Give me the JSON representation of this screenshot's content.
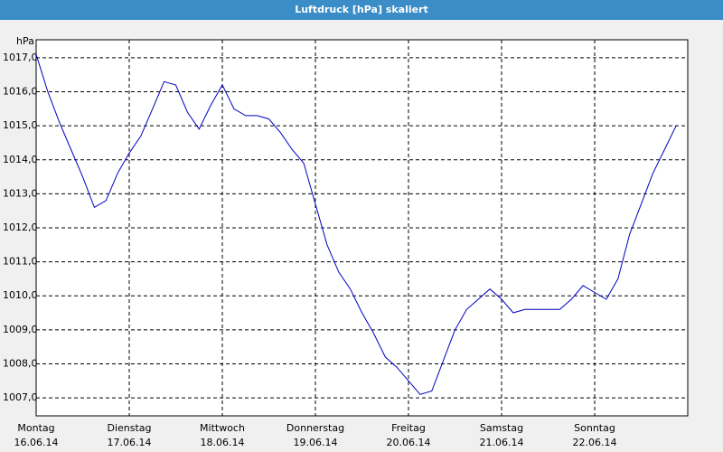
{
  "chart_data": {
    "type": "line",
    "title": "Luftdruck [hPa] skaliert",
    "y_label": "hPa",
    "categories": [
      {
        "day": "Montag",
        "date": "16.06.14"
      },
      null,
      null,
      null,
      null,
      null,
      null,
      null,
      {
        "day": "Dienstag",
        "date": "17.06.14"
      },
      null,
      null,
      null,
      null,
      null,
      null,
      null,
      {
        "day": "Mittwoch",
        "date": "18.06.14"
      },
      null,
      null,
      null,
      null,
      null,
      null,
      null,
      {
        "day": "Donnerstag",
        "date": "19.06.14"
      },
      null,
      null,
      null,
      null,
      null,
      null,
      null,
      {
        "day": "Freitag",
        "date": "20.06.14"
      },
      null,
      null,
      null,
      null,
      null,
      null,
      null,
      {
        "day": "Samstag",
        "date": "21.06.14"
      },
      null,
      null,
      null,
      null,
      null,
      null,
      null,
      {
        "day": "Sonntag",
        "date": "22.06.14"
      },
      null,
      null,
      null,
      null,
      null,
      null,
      null
    ],
    "values": [
      1017.1,
      1016.0,
      1015.1,
      1014.3,
      1013.5,
      1012.6,
      1012.8,
      1013.6,
      1014.2,
      1014.7,
      1015.5,
      1016.3,
      1016.2,
      1015.4,
      1014.9,
      1015.6,
      1016.2,
      1015.5,
      1015.3,
      1015.3,
      1015.2,
      1014.8,
      1014.3,
      1013.9,
      1012.7,
      1011.5,
      1010.7,
      1010.2,
      1009.5,
      1008.9,
      1008.2,
      1007.9,
      1007.5,
      1007.1,
      1007.2,
      1008.1,
      1009.0,
      1009.6,
      1009.9,
      1010.2,
      1009.9,
      1009.5,
      1009.6,
      1009.6,
      1009.6,
      1009.6,
      1009.9,
      1010.3,
      1010.1,
      1009.9,
      1010.5,
      1011.8,
      1012.7,
      1013.6,
      1014.3,
      1015.0
    ],
    "color": "#0000c0",
    "ylim": [
      1006.47,
      1017.53
    ],
    "yticks": [
      {
        "value": 1007,
        "label": "1007,0"
      },
      {
        "value": 1008,
        "label": "1008,0"
      },
      {
        "value": 1009,
        "label": "1009,0"
      },
      {
        "value": 1010,
        "label": "1010,0"
      },
      {
        "value": 1011,
        "label": "1011,0"
      },
      {
        "value": 1012,
        "label": "1012,0"
      },
      {
        "value": 1013,
        "label": "1013,0"
      },
      {
        "value": 1014,
        "label": "1014,0"
      },
      {
        "value": 1015,
        "label": "1015,0"
      },
      {
        "value": 1016,
        "label": "1016,0"
      },
      {
        "value": 1017,
        "label": "1017,0"
      }
    ],
    "grid": true
  }
}
